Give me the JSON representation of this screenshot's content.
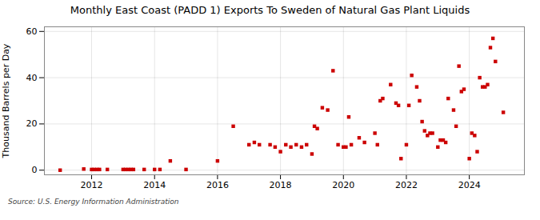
{
  "chart_data": {
    "type": "scatter",
    "title": "Monthly East Coast (PADD 1) Exports To Sweden of Natural Gas Plant Liquids",
    "ylabel": "Thousand Barrels per Day",
    "annotations": [
      "Source: U.S. Energy Information Administration"
    ],
    "color": "#cc0000",
    "marker": "square",
    "grid": true,
    "xlim": [
      2010.5,
      2025.75
    ],
    "ylim": [
      -2,
      62
    ],
    "xticks": [
      2012,
      2014,
      2016,
      2018,
      2020,
      2022,
      2024
    ],
    "yticks": [
      0,
      20,
      40,
      60
    ],
    "x": [
      2011.0,
      2011.75,
      2012.0,
      2012.08,
      2012.17,
      2012.25,
      2012.5,
      2013.0,
      2013.08,
      2013.17,
      2013.25,
      2013.33,
      2013.67,
      2014.0,
      2014.17,
      2014.5,
      2015.0,
      2016.0,
      2016.5,
      2017.0,
      2017.17,
      2017.33,
      2017.67,
      2017.83,
      2018.0,
      2018.17,
      2018.33,
      2018.5,
      2018.67,
      2018.83,
      2019.0,
      2019.08,
      2019.17,
      2019.33,
      2019.5,
      2019.67,
      2019.83,
      2020.0,
      2020.08,
      2020.17,
      2020.25,
      2020.5,
      2020.67,
      2021.0,
      2021.08,
      2021.17,
      2021.25,
      2021.5,
      2021.67,
      2021.75,
      2021.83,
      2022.0,
      2022.08,
      2022.17,
      2022.33,
      2022.42,
      2022.5,
      2022.58,
      2022.67,
      2022.75,
      2022.83,
      2023.0,
      2023.08,
      2023.17,
      2023.25,
      2023.33,
      2023.5,
      2023.58,
      2023.67,
      2023.75,
      2023.83,
      2024.0,
      2024.08,
      2024.17,
      2024.25,
      2024.33,
      2024.42,
      2024.5,
      2024.58,
      2024.67,
      2024.75,
      2024.83,
      2025.08
    ],
    "values": [
      0.0,
      0.5,
      0.3,
      0.3,
      0.3,
      0.3,
      0.3,
      0.3,
      0.3,
      0.3,
      0.3,
      0.3,
      0.3,
      0.3,
      0.3,
      4.0,
      0.3,
      4.0,
      19.0,
      11.0,
      12.0,
      11.0,
      11.0,
      10.0,
      8.0,
      11.0,
      10.0,
      11.0,
      10.0,
      11.0,
      7.0,
      19.0,
      18.0,
      27.0,
      26.0,
      43.0,
      11.0,
      10.0,
      10.0,
      23.0,
      11.0,
      14.0,
      12.0,
      16.0,
      11.0,
      30.0,
      31.0,
      37.0,
      29.0,
      28.0,
      5.0,
      11.0,
      28.0,
      41.0,
      36.0,
      30.0,
      21.0,
      17.0,
      15.0,
      16.0,
      16.0,
      10.0,
      13.0,
      13.0,
      12.0,
      31.0,
      26.0,
      19.0,
      45.0,
      34.0,
      35.0,
      5.0,
      16.0,
      15.0,
      8.0,
      40.0,
      36.0,
      36.0,
      37.0,
      53.0,
      57.0,
      47.0,
      25.0
    ]
  }
}
